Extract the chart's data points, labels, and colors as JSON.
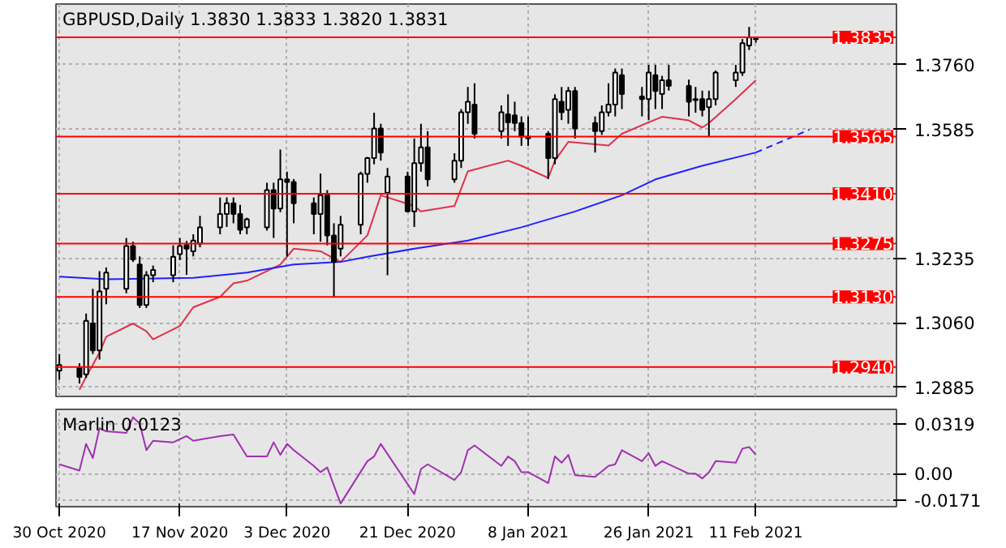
{
  "chart_data": [
    {
      "type": "candlestick",
      "title": "GBPUSD,Daily 1.3830 1.3833 1.3820 1.3831",
      "x": [
        "2020-10-30",
        "2020-11-02",
        "2020-11-03",
        "2020-11-04",
        "2020-11-05",
        "2020-11-06",
        "2020-11-09",
        "2020-11-10",
        "2020-11-11",
        "2020-11-12",
        "2020-11-13",
        "2020-11-16",
        "2020-11-17",
        "2020-11-18",
        "2020-11-19",
        "2020-11-20",
        "2020-11-23",
        "2020-11-24",
        "2020-11-25",
        "2020-11-26",
        "2020-11-27",
        "2020-11-30",
        "2020-12-01",
        "2020-12-02",
        "2020-12-03",
        "2020-12-04",
        "2020-12-07",
        "2020-12-08",
        "2020-12-09",
        "2020-12-10",
        "2020-12-11",
        "2020-12-14",
        "2020-12-15",
        "2020-12-16",
        "2020-12-17",
        "2020-12-18",
        "2020-12-21",
        "2020-12-22",
        "2020-12-23",
        "2020-12-24",
        "2020-12-28",
        "2020-12-29",
        "2020-12-30",
        "2020-12-31",
        "2021-01-04",
        "2021-01-05",
        "2021-01-06",
        "2021-01-07",
        "2021-01-08",
        "2021-01-11",
        "2021-01-12",
        "2021-01-13",
        "2021-01-14",
        "2021-01-15",
        "2021-01-18",
        "2021-01-19",
        "2021-01-20",
        "2021-01-21",
        "2021-01-22",
        "2021-01-25",
        "2021-01-26",
        "2021-01-27",
        "2021-01-28",
        "2021-01-29",
        "2021-02-01",
        "2021-02-02",
        "2021-02-03",
        "2021-02-04",
        "2021-02-05",
        "2021-02-08",
        "2021-02-09",
        "2021-02-10",
        "2021-02-11"
      ],
      "ohlc": [
        [
          1.293,
          1.2975,
          1.2905,
          1.2945
        ],
        [
          1.2937,
          1.295,
          1.2895,
          1.2913
        ],
        [
          1.292,
          1.3085,
          1.291,
          1.3065
        ],
        [
          1.3058,
          1.3152,
          1.2975,
          1.2985
        ],
        [
          1.2985,
          1.32,
          1.296,
          1.3145
        ],
        [
          1.3152,
          1.321,
          1.311,
          1.3196
        ],
        [
          1.3152,
          1.329,
          1.314,
          1.3268
        ],
        [
          1.3268,
          1.328,
          1.3225,
          1.3232
        ],
        [
          1.3218,
          1.324,
          1.31,
          1.3108
        ],
        [
          1.3108,
          1.32,
          1.31,
          1.3189
        ],
        [
          1.3189,
          1.3215,
          1.317,
          1.3203
        ],
        [
          1.3189,
          1.327,
          1.317,
          1.3239
        ],
        [
          1.3246,
          1.329,
          1.323,
          1.3268
        ],
        [
          1.3271,
          1.3282,
          1.319,
          1.3261
        ],
        [
          1.3254,
          1.33,
          1.324,
          1.3283
        ],
        [
          1.3275,
          1.335,
          1.3265,
          1.3319
        ],
        [
          1.3319,
          1.34,
          1.33,
          1.3355
        ],
        [
          1.3355,
          1.34,
          1.332,
          1.3384
        ],
        [
          1.3384,
          1.34,
          1.333,
          1.3355
        ],
        [
          1.3355,
          1.338,
          1.33,
          1.3312
        ],
        [
          1.3319,
          1.3345,
          1.33,
          1.3341
        ],
        [
          1.3319,
          1.344,
          1.331,
          1.342
        ],
        [
          1.342,
          1.344,
          1.329,
          1.337
        ],
        [
          1.337,
          1.353,
          1.336,
          1.3449
        ],
        [
          1.3449,
          1.347,
          1.324,
          1.3442
        ],
        [
          1.3442,
          1.345,
          1.333,
          1.3384
        ],
        [
          1.3384,
          1.34,
          1.33,
          1.3355
        ],
        [
          1.3355,
          1.3465,
          1.328,
          1.3406
        ],
        [
          1.3406,
          1.342,
          1.327,
          1.3297
        ],
        [
          1.3297,
          1.333,
          1.313,
          1.3225
        ],
        [
          1.3261,
          1.335,
          1.324,
          1.3326
        ],
        [
          1.3326,
          1.347,
          1.33,
          1.3464
        ],
        [
          1.3464,
          1.351,
          1.344,
          1.3507
        ],
        [
          1.3507,
          1.363,
          1.349,
          1.3587
        ],
        [
          1.3587,
          1.36,
          1.35,
          1.3522
        ],
        [
          1.3413,
          1.348,
          1.3189,
          1.3457
        ],
        [
          1.3457,
          1.347,
          1.336,
          1.3362
        ],
        [
          1.3362,
          1.356,
          1.332,
          1.3493
        ],
        [
          1.3493,
          1.36,
          1.347,
          1.3536
        ],
        [
          1.3536,
          1.358,
          1.343,
          1.3449
        ],
        [
          1.3449,
          1.352,
          1.344,
          1.35
        ],
        [
          1.35,
          1.364,
          1.348,
          1.3631
        ],
        [
          1.3631,
          1.37,
          1.36,
          1.366
        ],
        [
          1.3652,
          1.371,
          1.356,
          1.3573
        ],
        [
          1.358,
          1.365,
          1.356,
          1.3631
        ],
        [
          1.3626,
          1.368,
          1.354,
          1.3604
        ],
        [
          1.3623,
          1.366,
          1.358,
          1.3602
        ],
        [
          1.3602,
          1.362,
          1.354,
          1.3565
        ],
        [
          1.3565,
          1.362,
          1.354,
          1.3561
        ],
        [
          1.3573,
          1.358,
          1.345,
          1.3507
        ],
        [
          1.3507,
          1.368,
          1.349,
          1.3667
        ],
        [
          1.366,
          1.37,
          1.361,
          1.3631
        ],
        [
          1.3638,
          1.37,
          1.36,
          1.3689
        ],
        [
          1.3689,
          1.37,
          1.356,
          1.3587
        ],
        [
          1.3602,
          1.362,
          1.3522,
          1.358
        ],
        [
          1.358,
          1.365,
          1.357,
          1.3631
        ],
        [
          1.3631,
          1.371,
          1.362,
          1.3652
        ],
        [
          1.3652,
          1.375,
          1.362,
          1.3739
        ],
        [
          1.3732,
          1.375,
          1.364,
          1.3681
        ],
        [
          1.3674,
          1.37,
          1.362,
          1.3667
        ],
        [
          1.3667,
          1.376,
          1.361,
          1.3739
        ],
        [
          1.3732,
          1.376,
          1.364,
          1.3689
        ],
        [
          1.3681,
          1.373,
          1.364,
          1.3718
        ],
        [
          1.3718,
          1.376,
          1.369,
          1.3703
        ],
        [
          1.3703,
          1.372,
          1.362,
          1.366
        ],
        [
          1.3667,
          1.37,
          1.363,
          1.3664
        ],
        [
          1.3667,
          1.369,
          1.362,
          1.3638
        ],
        [
          1.3645,
          1.369,
          1.3565,
          1.3667
        ],
        [
          1.3667,
          1.3745,
          1.365,
          1.3739
        ],
        [
          1.3718,
          1.376,
          1.37,
          1.3739
        ],
        [
          1.3739,
          1.383,
          1.373,
          1.3819
        ],
        [
          1.3812,
          1.3863,
          1.38,
          1.3834
        ],
        [
          1.383,
          1.3833,
          1.382,
          1.3831
        ]
      ],
      "series": [
        {
          "type": "line",
          "color": "#e0304a",
          "x": [
            "2020-11-02",
            "2020-11-03",
            "2020-11-05",
            "2020-11-06",
            "2020-11-10",
            "2020-11-12",
            "2020-11-13",
            "2020-11-17",
            "2020-11-19",
            "2020-11-23",
            "2020-11-25",
            "2020-11-27",
            "2020-12-02",
            "2020-12-04",
            "2020-12-08",
            "2020-12-11",
            "2020-12-15",
            "2020-12-17",
            "2020-12-22",
            "2020-12-23",
            "2020-12-28",
            "2020-12-30",
            "2021-01-05",
            "2021-01-07",
            "2021-01-11",
            "2021-01-12",
            "2021-01-14",
            "2021-01-20",
            "2021-01-22",
            "2021-01-26",
            "2021-01-28",
            "2021-02-01",
            "2021-02-03",
            "2021-02-04",
            "2021-02-08",
            "2021-02-11"
          ],
          "values": [
            1.2878,
            1.2913,
            1.2979,
            1.3022,
            1.3058,
            1.3037,
            1.3015,
            1.3051,
            1.3102,
            1.313,
            1.3167,
            1.3174,
            1.3218,
            1.3261,
            1.3254,
            1.3225,
            1.3297,
            1.3406,
            1.3377,
            1.3362,
            1.3377,
            1.3471,
            1.35,
            1.3486,
            1.3453,
            1.35,
            1.3551,
            1.3541,
            1.3573,
            1.3604,
            1.3619,
            1.3609,
            1.359,
            1.3602,
            1.3667,
            1.3718
          ]
        },
        {
          "type": "line",
          "color": "#2020ff",
          "x": [
            "2020-10-30",
            "2020-11-06",
            "2020-11-19",
            "2020-11-27",
            "2020-12-04",
            "2020-12-11",
            "2020-12-15",
            "2020-12-22",
            "2020-12-30",
            "2021-01-07",
            "2021-01-15",
            "2021-01-22",
            "2021-01-27",
            "2021-02-03",
            "2021-02-11"
          ],
          "values": [
            1.3185,
            1.3178,
            1.3182,
            1.3196,
            1.3218,
            1.3225,
            1.3239,
            1.3261,
            1.3283,
            1.3319,
            1.3362,
            1.3406,
            1.3449,
            1.3486,
            1.3522
          ]
        },
        {
          "type": "line",
          "color": "#2020ff",
          "line_style": "dashed",
          "x": [
            "2021-02-11",
            "2021-02-19"
          ],
          "values": [
            1.3522,
            1.3584
          ]
        }
      ],
      "xlim": [
        "2020-10-29T12:00",
        "2021-03-04"
      ],
      "ylim": [
        1.286,
        1.3925
      ],
      "xticks": [
        {
          "value": "2020-10-30",
          "label": null
        },
        {
          "value": "2020-11-17",
          "label": null
        },
        {
          "value": "2020-12-03",
          "label": null
        },
        {
          "value": "2020-12-21",
          "label": null
        },
        {
          "value": "2021-01-08",
          "label": null
        },
        {
          "value": "2021-01-26",
          "label": null
        },
        {
          "value": "2021-02-11",
          "label": null
        }
      ],
      "yticks": [
        {
          "value": 1.376,
          "label": "1.3760"
        },
        1.3585,
        1.3235,
        {
          "value": 1.306,
          "label": "1.3060"
        },
        1.2885
      ],
      "ref_lines": [
        {
          "axis": "y",
          "value": 1.3835,
          "label": "1.3835",
          "color": "#ff0000"
        },
        {
          "axis": "y",
          "value": 1.3565,
          "label": "1.3565",
          "color": "#ff0000"
        },
        {
          "axis": "y",
          "value": 1.341,
          "label": "1.3410",
          "color": "#ff0000"
        },
        {
          "axis": "y",
          "value": 1.3275,
          "label": "1.3275",
          "color": "#ff0000"
        },
        {
          "axis": "y",
          "value": 1.313,
          "label": "1.3130",
          "color": "#ff0000"
        },
        {
          "axis": "y",
          "value": 1.294,
          "label": "1.2940",
          "color": "#ff0000"
        }
      ],
      "grid": true,
      "tick_labels": "y"
    },
    {
      "type": "line",
      "title": "Marlin 0.0123",
      "series": [
        {
          "color": "#a030b0",
          "x": [
            "2020-10-30",
            "2020-11-02",
            "2020-11-03",
            "2020-11-04",
            "2020-11-05",
            "2020-11-06",
            "2020-11-09",
            "2020-11-10",
            "2020-11-11",
            "2020-11-12",
            "2020-11-13",
            "2020-11-16",
            "2020-11-18",
            "2020-11-19",
            "2020-11-23",
            "2020-11-25",
            "2020-11-27",
            "2020-11-30",
            "2020-12-01",
            "2020-12-02",
            "2020-12-03",
            "2020-12-04",
            "2020-12-07",
            "2020-12-08",
            "2020-12-09",
            "2020-12-11",
            "2020-12-15",
            "2020-12-16",
            "2020-12-17",
            "2020-12-22",
            "2020-12-23",
            "2020-12-24",
            "2020-12-28",
            "2020-12-29",
            "2020-12-30",
            "2020-12-31",
            "2021-01-04",
            "2021-01-05",
            "2021-01-06",
            "2021-01-07",
            "2021-01-08",
            "2021-01-11",
            "2021-01-12",
            "2021-01-13",
            "2021-01-14",
            "2021-01-15",
            "2021-01-18",
            "2021-01-20",
            "2021-01-21",
            "2021-01-22",
            "2021-01-25",
            "2021-01-26",
            "2021-01-27",
            "2021-01-28",
            "2021-02-01",
            "2021-02-02",
            "2021-02-03",
            "2021-02-04",
            "2021-02-05",
            "2021-02-08",
            "2021-02-09",
            "2021-02-10",
            "2021-02-11"
          ],
          "values": [
            0.006,
            0.002,
            0.019,
            0.01,
            0.029,
            0.027,
            0.026,
            0.036,
            0.032,
            0.015,
            0.021,
            0.02,
            0.024,
            0.021,
            0.024,
            0.025,
            0.011,
            0.011,
            0.02,
            0.012,
            0.019,
            0.015,
            0.005,
            0.001,
            0.004,
            -0.019,
            0.008,
            0.011,
            0.019,
            -0.013,
            0.003,
            0.006,
            -0.004,
            0.001,
            0.015,
            0.018,
            0.005,
            0.011,
            0.008,
            0.001,
            0.001,
            -0.006,
            0.011,
            0.007,
            0.012,
            -0.001,
            -0.002,
            0.005,
            0.006,
            0.015,
            0.008,
            0.013,
            0.005,
            0.008,
            0.0,
            0.0,
            -0.003,
            0.001,
            0.008,
            0.007,
            0.016,
            0.017,
            0.012
          ]
        }
      ],
      "xlim": [
        "2020-10-29T12:00",
        "2021-03-04"
      ],
      "ylim": [
        -0.021,
        0.041
      ],
      "xticks": [
        {
          "value": "2020-10-30",
          "label": "30 Oct 2020"
        },
        {
          "value": "2020-11-17",
          "label": "17 Nov 2020"
        },
        {
          "value": "2020-12-03",
          "label": "3 Dec 2020"
        },
        {
          "value": "2020-12-21",
          "label": "21 Dec 2020"
        },
        {
          "value": "2021-01-08",
          "label": "8 Jan 2021"
        },
        {
          "value": "2021-01-26",
          "label": "26 Jan 2021"
        },
        {
          "value": "2021-02-11",
          "label": "11 Feb 2021"
        }
      ],
      "yticks": [
        0.0319,
        {
          "value": 0,
          "label": "0.00"
        },
        -0.0171
      ],
      "grid": true
    }
  ]
}
